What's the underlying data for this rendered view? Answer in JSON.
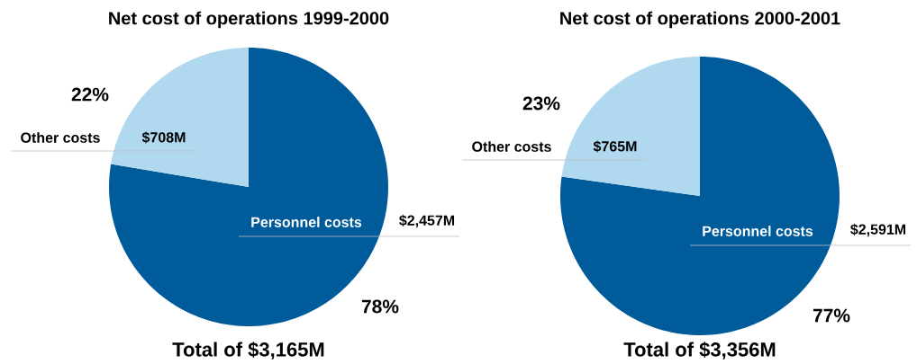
{
  "chart_data": [
    {
      "type": "pie",
      "title": "Net cost of operations 1999-2000",
      "categories": [
        "Personnel costs",
        "Other costs"
      ],
      "values": [
        2457,
        708
      ],
      "value_labels": [
        "$2,457M",
        "$708M"
      ],
      "colors": [
        "#005b9a",
        "#b0d9f0"
      ],
      "annotations": [
        "78%",
        "22%",
        "Total of $3,165M"
      ]
    },
    {
      "type": "pie",
      "title": "Net cost of operations 2000-2001",
      "categories": [
        "Personnel costs",
        "Other costs"
      ],
      "values": [
        2591,
        765
      ],
      "value_labels": [
        "$2,591M",
        "$765M"
      ],
      "colors": [
        "#005b9a",
        "#b0d9f0"
      ],
      "annotations": [
        "77%",
        "23%",
        "Total of $3,356M"
      ]
    }
  ]
}
